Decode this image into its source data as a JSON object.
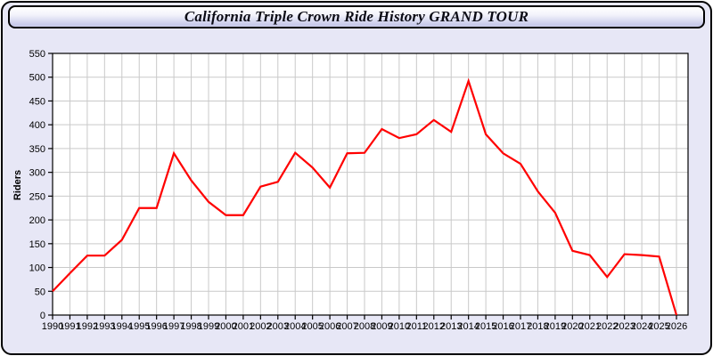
{
  "window": {
    "title": "California Triple Crown Ride History GRAND TOUR"
  },
  "colors": {
    "line": "#ff0000",
    "frame_background": "#e7e7f6",
    "plot_background": "#ffffff",
    "grid": "#c9c9c9",
    "axis": "#000000",
    "titlebar_top": "#ffffff",
    "titlebar_bottom": "#c6c8e9"
  },
  "chart_data": {
    "type": "line",
    "title": "California Triple Crown Ride History GRAND TOUR",
    "xlabel": "",
    "ylabel": "Riders",
    "grid": true,
    "legend": false,
    "ylim": [
      0,
      550
    ],
    "yticks": [
      0,
      50,
      100,
      150,
      200,
      250,
      300,
      350,
      400,
      450,
      500,
      550
    ],
    "series_color": "#ff0000",
    "x": [
      1990,
      1991,
      1992,
      1993,
      1994,
      1995,
      1996,
      1997,
      1998,
      1999,
      2000,
      2001,
      2002,
      2003,
      2004,
      2005,
      2006,
      2007,
      2008,
      2009,
      2010,
      2011,
      2012,
      2013,
      2014,
      2015,
      2016,
      2017,
      2018,
      2019,
      2020,
      2021,
      2022,
      2023,
      2024,
      2025,
      2026
    ],
    "values": [
      50,
      88,
      125,
      125,
      158,
      225,
      225,
      340,
      283,
      238,
      210,
      210,
      270,
      280,
      341,
      310,
      268,
      340,
      341,
      391,
      372,
      380,
      410,
      385,
      492,
      380,
      340,
      318,
      260,
      215,
      135,
      126,
      80,
      128,
      126,
      123,
      0
    ]
  }
}
